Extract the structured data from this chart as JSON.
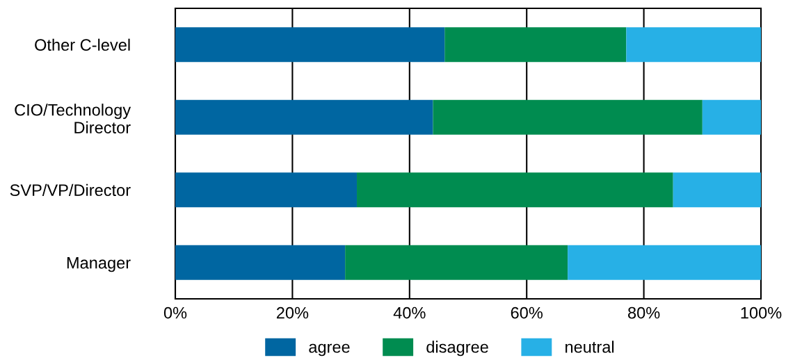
{
  "chart_data": {
    "type": "bar",
    "orientation": "horizontal",
    "stacked": true,
    "categories": [
      "Other C-level",
      "CIO/Technology\nDirector",
      "SVP/VP/Director",
      "Manager"
    ],
    "series": [
      {
        "name": "agree",
        "color": "#0066a1",
        "values": [
          46,
          44,
          31,
          29
        ]
      },
      {
        "name": "disagree",
        "color": "#008c50",
        "values": [
          31,
          46,
          54,
          38
        ]
      },
      {
        "name": "neutral",
        "color": "#27b0e6",
        "values": [
          23,
          10,
          15,
          33
        ]
      }
    ],
    "xlim": [
      0,
      100
    ],
    "xticks": [
      {
        "value": 0,
        "label": "0%"
      },
      {
        "value": 20,
        "label": "20%"
      },
      {
        "value": 40,
        "label": "40%"
      },
      {
        "value": 60,
        "label": "60%"
      },
      {
        "value": 80,
        "label": "80%"
      },
      {
        "value": 100,
        "label": "100%"
      }
    ],
    "grid": "x",
    "legend": "bottom"
  }
}
